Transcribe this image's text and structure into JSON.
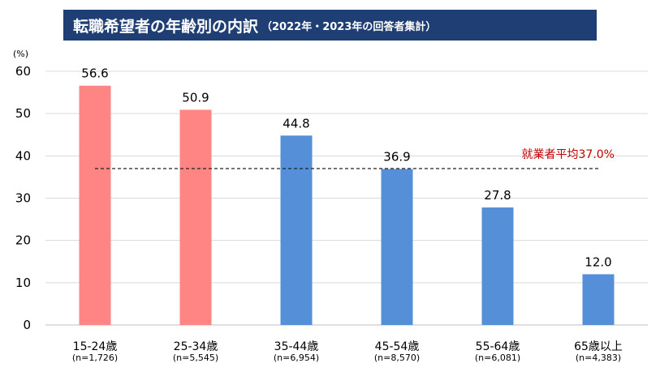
{
  "header": {
    "title": "転職希望者の年齢別の内訳",
    "subtitle": "（2022年・2023年の回答者集計）"
  },
  "colors": {
    "young": "#ff8585",
    "older": "#558fd8",
    "avg_line": "#222222",
    "avg_text": "#c00000",
    "title_bg": "#1f3e74"
  },
  "chart_data": {
    "type": "bar",
    "y_unit": "(%)",
    "ylim": [
      0,
      60
    ],
    "y_ticks": [
      0,
      10,
      20,
      30,
      40,
      50,
      60
    ],
    "grid": true,
    "categories": [
      "15-24歳",
      "25-34歳",
      "35-44歳",
      "45-54歳",
      "55-64歳",
      "65歳以上"
    ],
    "sample_sizes": [
      "(n=1,726)",
      "(n=5,545)",
      "(n=6,954)",
      "(n=8,570)",
      "(n=6,081)",
      "(n=4,383)"
    ],
    "values": [
      56.6,
      50.9,
      44.8,
      36.9,
      27.8,
      12.0
    ],
    "value_labels": [
      "56.6",
      "50.9",
      "44.8",
      "36.9",
      "27.8",
      "12.0"
    ],
    "bar_color_groups": [
      "young",
      "young",
      "older",
      "older",
      "older",
      "older"
    ],
    "reference_line": {
      "value": 37.0,
      "label": "就業者平均37.0%",
      "style": "dashed"
    }
  }
}
